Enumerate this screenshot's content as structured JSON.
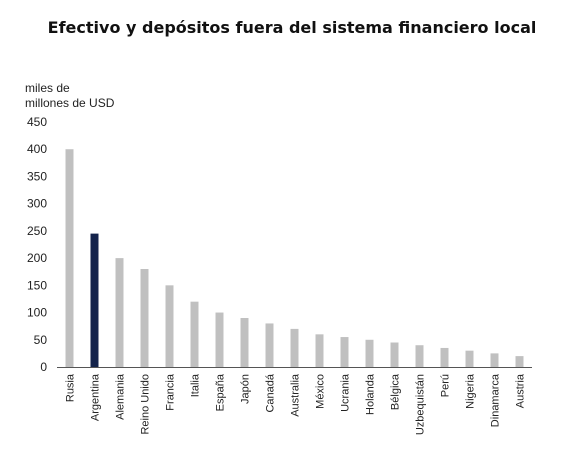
{
  "chart_data": {
    "type": "bar",
    "title": "Efectivo y depósitos fuera del sistema financiero local",
    "ylabel_lines": [
      "miles de",
      "millones de USD"
    ],
    "xlabel": "",
    "ylim": [
      0,
      450
    ],
    "yticks": [
      0,
      50,
      100,
      150,
      200,
      250,
      300,
      350,
      400,
      450
    ],
    "grid": false,
    "legend": "none",
    "categories": [
      "Rusia",
      "Argentina",
      "Alemania",
      "Reino Unido",
      "Francia",
      "Italia",
      "España",
      "Japón",
      "Canadá",
      "Australia",
      "México",
      "Ucrania",
      "Holanda",
      "Bélgica",
      "Uzbequistán",
      "Perú",
      "Nigeria",
      "Dinamarca",
      "Austria"
    ],
    "values": [
      400,
      245,
      200,
      180,
      150,
      120,
      100,
      90,
      80,
      70,
      60,
      55,
      50,
      45,
      40,
      35,
      30,
      25,
      20
    ],
    "highlight_category": "Argentina",
    "colors": {
      "bar": "#c0c0c0",
      "highlight": "#14234b",
      "axis": "#555555"
    }
  }
}
